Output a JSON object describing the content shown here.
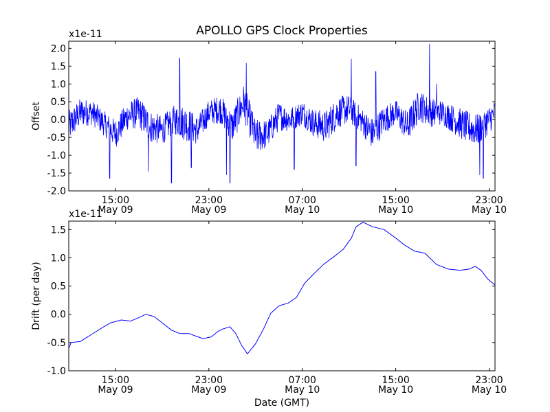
{
  "figure": {
    "title": "APOLLO GPS Clock Properties"
  },
  "chart_data": [
    {
      "type": "line",
      "ylabel": "Offset",
      "xlabel": "",
      "scale_label": "x1e-11",
      "ylim": [
        -2.0,
        2.2
      ],
      "xlim_hours": [
        11.0,
        47.5
      ],
      "x_axis_note": "hours after 00:00 May 09 GMT",
      "yticks": [
        -2.0,
        -1.5,
        -1.0,
        -0.5,
        0.0,
        0.5,
        1.0,
        1.5,
        2.0
      ],
      "ytick_labels": [
        "-2.0",
        "-1.5",
        "-1.0",
        "-0.5",
        "0.0",
        "0.5",
        "1.0",
        "1.5",
        "2.0"
      ],
      "xticks": [
        {
          "hour": 15,
          "time": "15:00",
          "date": "May 09"
        },
        {
          "hour": 23,
          "time": "23:00",
          "date": "May 09"
        },
        {
          "hour": 31,
          "time": "07:00",
          "date": "May 10"
        },
        {
          "hour": 39,
          "time": "15:00",
          "date": "May 10"
        },
        {
          "hour": 47,
          "time": "23:00",
          "date": "May 10"
        }
      ],
      "series": [
        {
          "color": "#0000ff",
          "style": "noisy",
          "x_hours": [
            11.0,
            12.0,
            13.0,
            14.0,
            15.0,
            16.0,
            17.0,
            18.0,
            19.0,
            20.0,
            21.0,
            22.0,
            23.0,
            24.0,
            25.0,
            26.0,
            27.0,
            28.0,
            29.0,
            30.0,
            31.0,
            32.0,
            33.0,
            34.0,
            35.0,
            36.0,
            37.0,
            38.0,
            39.0,
            40.0,
            41.0,
            42.0,
            43.0,
            44.0,
            45.0,
            46.0,
            47.0,
            47.5
          ],
          "center": [
            -0.2,
            0.2,
            0.2,
            -0.1,
            -0.4,
            0.1,
            0.2,
            -0.2,
            -0.3,
            0.0,
            -0.1,
            -0.3,
            0.2,
            0.3,
            -0.2,
            0.5,
            -0.5,
            -0.4,
            0.1,
            0.0,
            0.2,
            -0.1,
            -0.2,
            0.2,
            0.3,
            0.0,
            -0.4,
            0.0,
            0.2,
            -0.2,
            0.4,
            0.2,
            0.2,
            0.0,
            -0.2,
            -0.3,
            0.0,
            0.2
          ],
          "spread": [
            0.45,
            0.4,
            0.35,
            0.35,
            0.4,
            0.4,
            0.45,
            0.45,
            0.4,
            0.4,
            0.5,
            0.4,
            0.35,
            0.4,
            0.45,
            0.5,
            0.5,
            0.4,
            0.4,
            0.35,
            0.35,
            0.4,
            0.45,
            0.45,
            0.4,
            0.35,
            0.45,
            0.4,
            0.35,
            0.45,
            0.45,
            0.4,
            0.35,
            0.4,
            0.45,
            0.45,
            0.4,
            0.35
          ],
          "spikes": [
            {
              "hour": 14.5,
              "value": -1.65
            },
            {
              "hour": 17.8,
              "value": -1.45
            },
            {
              "hour": 19.8,
              "value": -1.78
            },
            {
              "hour": 20.5,
              "value": 1.72
            },
            {
              "hour": 21.5,
              "value": -1.35
            },
            {
              "hour": 24.5,
              "value": -1.55
            },
            {
              "hour": 24.8,
              "value": -1.78
            },
            {
              "hour": 26.2,
              "value": 1.58
            },
            {
              "hour": 30.3,
              "value": -1.4
            },
            {
              "hour": 35.2,
              "value": 1.7
            },
            {
              "hour": 35.6,
              "value": -1.3
            },
            {
              "hour": 37.3,
              "value": 1.35
            },
            {
              "hour": 41.9,
              "value": 2.12
            },
            {
              "hour": 42.5,
              "value": 1.0
            },
            {
              "hour": 46.2,
              "value": -1.55
            },
            {
              "hour": 46.5,
              "value": -1.65
            }
          ]
        }
      ]
    },
    {
      "type": "line",
      "ylabel": "Drift (per day)",
      "xlabel": "Date (GMT)",
      "scale_label": "x1e-11",
      "ylim": [
        -1.0,
        1.65
      ],
      "xlim_hours": [
        11.0,
        47.5
      ],
      "yticks": [
        -1.0,
        -0.5,
        0.0,
        0.5,
        1.0,
        1.5
      ],
      "ytick_labels": [
        "-1.0",
        "-0.5",
        "0.0",
        "0.5",
        "1.0",
        "1.5"
      ],
      "xticks": [
        {
          "hour": 15,
          "time": "15:00",
          "date": "May 09"
        },
        {
          "hour": 23,
          "time": "23:00",
          "date": "May 09"
        },
        {
          "hour": 31,
          "time": "07:00",
          "date": "May 10"
        },
        {
          "hour": 39,
          "time": "15:00",
          "date": "May 10"
        },
        {
          "hour": 47,
          "time": "23:00",
          "date": "May 10"
        }
      ],
      "series": [
        {
          "color": "#0000ff",
          "x_hours": [
            11.0,
            11.2,
            12.0,
            13.0,
            14.0,
            14.6,
            15.5,
            16.3,
            17.1,
            17.6,
            18.3,
            19.0,
            19.8,
            20.5,
            21.3,
            21.8,
            22.5,
            23.2,
            23.8,
            24.2,
            24.8,
            25.3,
            25.8,
            26.3,
            27.0,
            27.7,
            28.3,
            29.0,
            29.8,
            30.5,
            31.2,
            32.0,
            32.8,
            33.7,
            34.5,
            35.2,
            35.6,
            36.2,
            37.0,
            38.0,
            39.0,
            39.8,
            40.6,
            41.5,
            42.5,
            43.5,
            44.5,
            45.3,
            45.8,
            46.3,
            46.9,
            47.5
          ],
          "values": [
            -0.6,
            -0.5,
            -0.48,
            -0.35,
            -0.22,
            -0.15,
            -0.1,
            -0.12,
            -0.05,
            0.0,
            -0.04,
            -0.15,
            -0.28,
            -0.34,
            -0.34,
            -0.38,
            -0.43,
            -0.4,
            -0.3,
            -0.26,
            -0.22,
            -0.34,
            -0.55,
            -0.7,
            -0.52,
            -0.25,
            0.02,
            0.15,
            0.2,
            0.3,
            0.55,
            0.72,
            0.88,
            1.02,
            1.15,
            1.35,
            1.55,
            1.63,
            1.55,
            1.5,
            1.35,
            1.22,
            1.12,
            1.08,
            0.88,
            0.8,
            0.78,
            0.8,
            0.85,
            0.78,
            0.62,
            0.52
          ]
        }
      ]
    }
  ]
}
